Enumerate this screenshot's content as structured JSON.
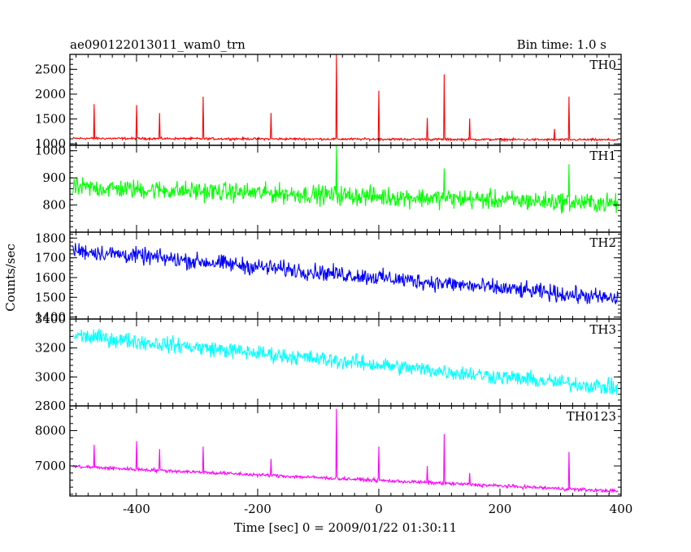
{
  "chart_data": {
    "type": "line",
    "title": "ae090122013011_wam0_trn",
    "subtitle": "Bin time: 1.0 s",
    "xlabel": "Time [sec] 0 = 2009/01/22 01:30:11",
    "ylabel": "Counts/sec",
    "xlim": [
      -510,
      400
    ],
    "xticks": [
      -400,
      -200,
      0,
      200,
      400
    ],
    "panels": [
      {
        "name": "TH0",
        "color": "#ff0000",
        "ylim": [
          970,
          2800
        ],
        "yticks": [
          1000,
          1500,
          2000,
          2500
        ],
        "baseline_start": 1110,
        "baseline_end": 1080,
        "noise": 35,
        "spikes": [
          {
            "x": -470,
            "y": 1800
          },
          {
            "x": -400,
            "y": 1780
          },
          {
            "x": -362,
            "y": 1620
          },
          {
            "x": -290,
            "y": 1950
          },
          {
            "x": -178,
            "y": 1620
          },
          {
            "x": -70,
            "y": 2800
          },
          {
            "x": 0,
            "y": 2070
          },
          {
            "x": 80,
            "y": 1520
          },
          {
            "x": 108,
            "y": 2400
          },
          {
            "x": 150,
            "y": 1510
          },
          {
            "x": 290,
            "y": 1300
          },
          {
            "x": 314,
            "y": 1950
          }
        ]
      },
      {
        "name": "TH1",
        "color": "#00ff00",
        "ylim": [
          700,
          1020
        ],
        "yticks": [
          800,
          900,
          1000
        ],
        "baseline_start": 865,
        "baseline_end": 805,
        "noise": 55,
        "spikes": [
          {
            "x": -70,
            "y": 1025
          },
          {
            "x": 108,
            "y": 935
          },
          {
            "x": 314,
            "y": 950
          }
        ]
      },
      {
        "name": "TH2",
        "color": "#0000ff",
        "ylim": [
          1390,
          1830
        ],
        "yticks": [
          1400,
          1500,
          1600,
          1700,
          1800
        ],
        "baseline_start": 1740,
        "baseline_end": 1490,
        "noise": 65,
        "spikes": []
      },
      {
        "name": "TH3",
        "color": "#00ffff",
        "ylim": [
          2800,
          3400
        ],
        "yticks": [
          2800,
          3000,
          3200,
          3400
        ],
        "baseline_start": 3290,
        "baseline_end": 2920,
        "noise": 85,
        "spikes": []
      },
      {
        "name": "TH0123",
        "color": "#ff00ff",
        "ylim": [
          6150,
          8700
        ],
        "yticks": [
          7000,
          8000
        ],
        "baseline_start": 6990,
        "baseline_end": 6280,
        "noise": 75,
        "spikes": [
          {
            "x": -470,
            "y": 7600
          },
          {
            "x": -400,
            "y": 7700
          },
          {
            "x": -362,
            "y": 7480
          },
          {
            "x": -290,
            "y": 7550
          },
          {
            "x": -178,
            "y": 7200
          },
          {
            "x": -70,
            "y": 8620
          },
          {
            "x": 0,
            "y": 7550
          },
          {
            "x": 80,
            "y": 7000
          },
          {
            "x": 108,
            "y": 7900
          },
          {
            "x": 150,
            "y": 6800
          },
          {
            "x": 314,
            "y": 7400
          }
        ]
      }
    ]
  }
}
